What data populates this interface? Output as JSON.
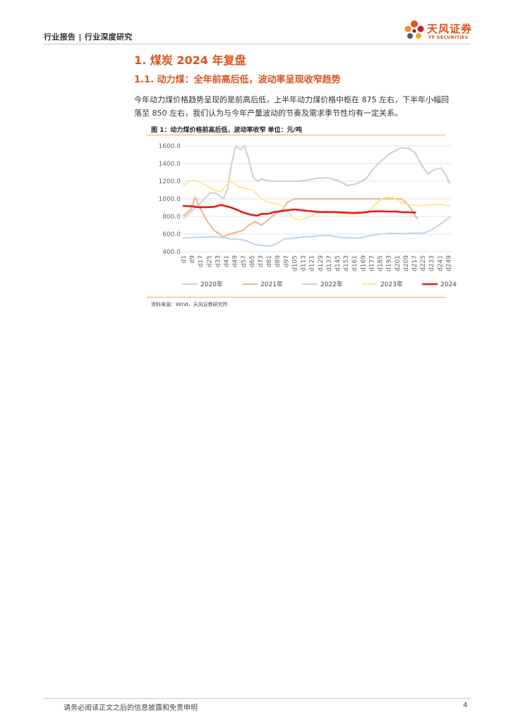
{
  "header": {
    "text": "行业报告 | 行业深度研究",
    "logo_name": "天风证券",
    "logo_sub": "TF SECURITIES"
  },
  "section": {
    "h1": "1. 煤炭 2024 年复盘",
    "h2": "1.1. 动力煤：全年前高后低，波动率呈现收窄趋势",
    "paragraph": "今年动力煤价格趋势呈现的是前高后低，上半年动力煤价格中枢在 875 左右，下半年小幅回落至 850 左右，我们认为与今年产量波动的节奏及需求季节性均有一定关系。"
  },
  "figure": {
    "title": "图 1：动力煤价格前高后低，波动率收窄 单位：元/吨",
    "source": "资料来源：Wind，天风证券研究所"
  },
  "chart_data": {
    "type": "line",
    "ylim": [
      400,
      1600
    ],
    "y_ticks": [
      "1600.0",
      "1400.0",
      "1200.0",
      "1000.0",
      "800.0",
      "600.0",
      "400.0"
    ],
    "x_ticks": [
      "d1",
      "d9",
      "d17",
      "d25",
      "d33",
      "d41",
      "d49",
      "d57",
      "d65",
      "d73",
      "d81",
      "d89",
      "d97",
      "d105",
      "d113",
      "d121",
      "d129",
      "d137",
      "d145",
      "d153",
      "d161",
      "d169",
      "d177",
      "d185",
      "d193",
      "d201",
      "d209",
      "d217",
      "d225",
      "d233",
      "d241",
      "d249"
    ],
    "x_range": [
      1,
      252
    ],
    "grid": "horizontal",
    "legend_position": "bottom",
    "series": [
      {
        "name": "2020年",
        "color": "#bdd7ee",
        "points": [
          [
            1,
            555
          ],
          [
            10,
            560
          ],
          [
            20,
            565
          ],
          [
            30,
            570
          ],
          [
            38,
            560
          ],
          [
            45,
            545
          ],
          [
            55,
            540
          ],
          [
            62,
            515
          ],
          [
            68,
            480
          ],
          [
            75,
            470
          ],
          [
            82,
            465
          ],
          [
            88,
            490
          ],
          [
            95,
            545
          ],
          [
            103,
            550
          ],
          [
            110,
            565
          ],
          [
            120,
            570
          ],
          [
            130,
            585
          ],
          [
            140,
            580
          ],
          [
            150,
            560
          ],
          [
            165,
            555
          ],
          [
            175,
            580
          ],
          [
            185,
            600
          ],
          [
            195,
            610
          ],
          [
            205,
            605
          ],
          [
            215,
            610
          ],
          [
            225,
            610
          ],
          [
            232,
            640
          ],
          [
            240,
            700
          ],
          [
            250,
            790
          ]
        ]
      },
      {
        "name": "2021年",
        "color": "#f4b183",
        "points": [
          [
            1,
            810
          ],
          [
            8,
            880
          ],
          [
            12,
            1020
          ],
          [
            18,
            860
          ],
          [
            24,
            730
          ],
          [
            30,
            640
          ],
          [
            38,
            570
          ],
          [
            44,
            600
          ],
          [
            50,
            620
          ],
          [
            56,
            640
          ],
          [
            62,
            700
          ],
          [
            68,
            740
          ],
          [
            74,
            700
          ],
          [
            82,
            780
          ],
          [
            88,
            840
          ],
          [
            94,
            880
          ],
          [
            98,
            960
          ],
          [
            105,
            1000
          ],
          [
            115,
            1000
          ],
          [
            130,
            1000
          ],
          [
            150,
            1000
          ],
          [
            170,
            1000
          ],
          [
            190,
            1000
          ],
          [
            205,
            1000
          ],
          [
            210,
            950
          ],
          [
            215,
            870
          ],
          [
            218,
            800
          ],
          [
            220,
            780
          ]
        ]
      },
      {
        "name": "2022年",
        "color": "#d0cece",
        "points": [
          [
            1,
            780
          ],
          [
            6,
            830
          ],
          [
            12,
            900
          ],
          [
            20,
            990
          ],
          [
            26,
            1070
          ],
          [
            32,
            1060
          ],
          [
            38,
            1000
          ],
          [
            42,
            1100
          ],
          [
            46,
            1400
          ],
          [
            50,
            1680
          ],
          [
            54,
            1560
          ],
          [
            58,
            1700
          ],
          [
            62,
            1450
          ],
          [
            66,
            1250
          ],
          [
            70,
            1200
          ],
          [
            74,
            1230
          ],
          [
            78,
            1210
          ],
          [
            85,
            1200
          ],
          [
            95,
            1200
          ],
          [
            110,
            1200
          ],
          [
            125,
            1230
          ],
          [
            135,
            1240
          ],
          [
            145,
            1210
          ],
          [
            155,
            1150
          ],
          [
            165,
            1180
          ],
          [
            172,
            1230
          ],
          [
            178,
            1330
          ],
          [
            185,
            1420
          ],
          [
            195,
            1520
          ],
          [
            205,
            1580
          ],
          [
            212,
            1570
          ],
          [
            218,
            1520
          ],
          [
            224,
            1380
          ],
          [
            230,
            1280
          ],
          [
            235,
            1330
          ],
          [
            242,
            1350
          ],
          [
            246,
            1280
          ],
          [
            250,
            1180
          ]
        ]
      },
      {
        "name": "2023年",
        "color": "#ffe699",
        "points": [
          [
            1,
            1150
          ],
          [
            6,
            1200
          ],
          [
            12,
            1210
          ],
          [
            18,
            1180
          ],
          [
            24,
            1140
          ],
          [
            30,
            1100
          ],
          [
            36,
            1080
          ],
          [
            42,
            1170
          ],
          [
            46,
            1200
          ],
          [
            52,
            1140
          ],
          [
            58,
            1120
          ],
          [
            66,
            1100
          ],
          [
            74,
            1000
          ],
          [
            80,
            960
          ],
          [
            86,
            950
          ],
          [
            92,
            930
          ],
          [
            98,
            870
          ],
          [
            104,
            780
          ],
          [
            110,
            760
          ],
          [
            118,
            790
          ],
          [
            126,
            840
          ],
          [
            134,
            860
          ],
          [
            142,
            850
          ],
          [
            150,
            830
          ],
          [
            158,
            820
          ],
          [
            166,
            830
          ],
          [
            174,
            860
          ],
          [
            180,
            930
          ],
          [
            186,
            1000
          ],
          [
            192,
            1020
          ],
          [
            198,
            1010
          ],
          [
            204,
            960
          ],
          [
            210,
            940
          ],
          [
            216,
            930
          ],
          [
            224,
            920
          ],
          [
            232,
            930
          ],
          [
            240,
            940
          ],
          [
            250,
            920
          ]
        ]
      },
      {
        "name": "2024年",
        "color": "#e41a1c",
        "points": [
          [
            1,
            920
          ],
          [
            8,
            915
          ],
          [
            15,
            905
          ],
          [
            22,
            905
          ],
          [
            30,
            910
          ],
          [
            36,
            930
          ],
          [
            40,
            920
          ],
          [
            46,
            900
          ],
          [
            52,
            870
          ],
          [
            58,
            840
          ],
          [
            64,
            820
          ],
          [
            70,
            810
          ],
          [
            74,
            830
          ],
          [
            80,
            830
          ],
          [
            86,
            850
          ],
          [
            92,
            860
          ],
          [
            98,
            870
          ],
          [
            105,
            880
          ],
          [
            112,
            870
          ],
          [
            120,
            860
          ],
          [
            128,
            850
          ],
          [
            136,
            850
          ],
          [
            144,
            850
          ],
          [
            152,
            845
          ],
          [
            160,
            840
          ],
          [
            168,
            845
          ],
          [
            176,
            855
          ],
          [
            184,
            860
          ],
          [
            192,
            855
          ],
          [
            200,
            855
          ],
          [
            206,
            848
          ],
          [
            212,
            848
          ],
          [
            218,
            845
          ]
        ]
      }
    ]
  },
  "footer": {
    "disclaimer": "请务必阅读正文之后的信息披露和免责申明",
    "page": "4"
  }
}
